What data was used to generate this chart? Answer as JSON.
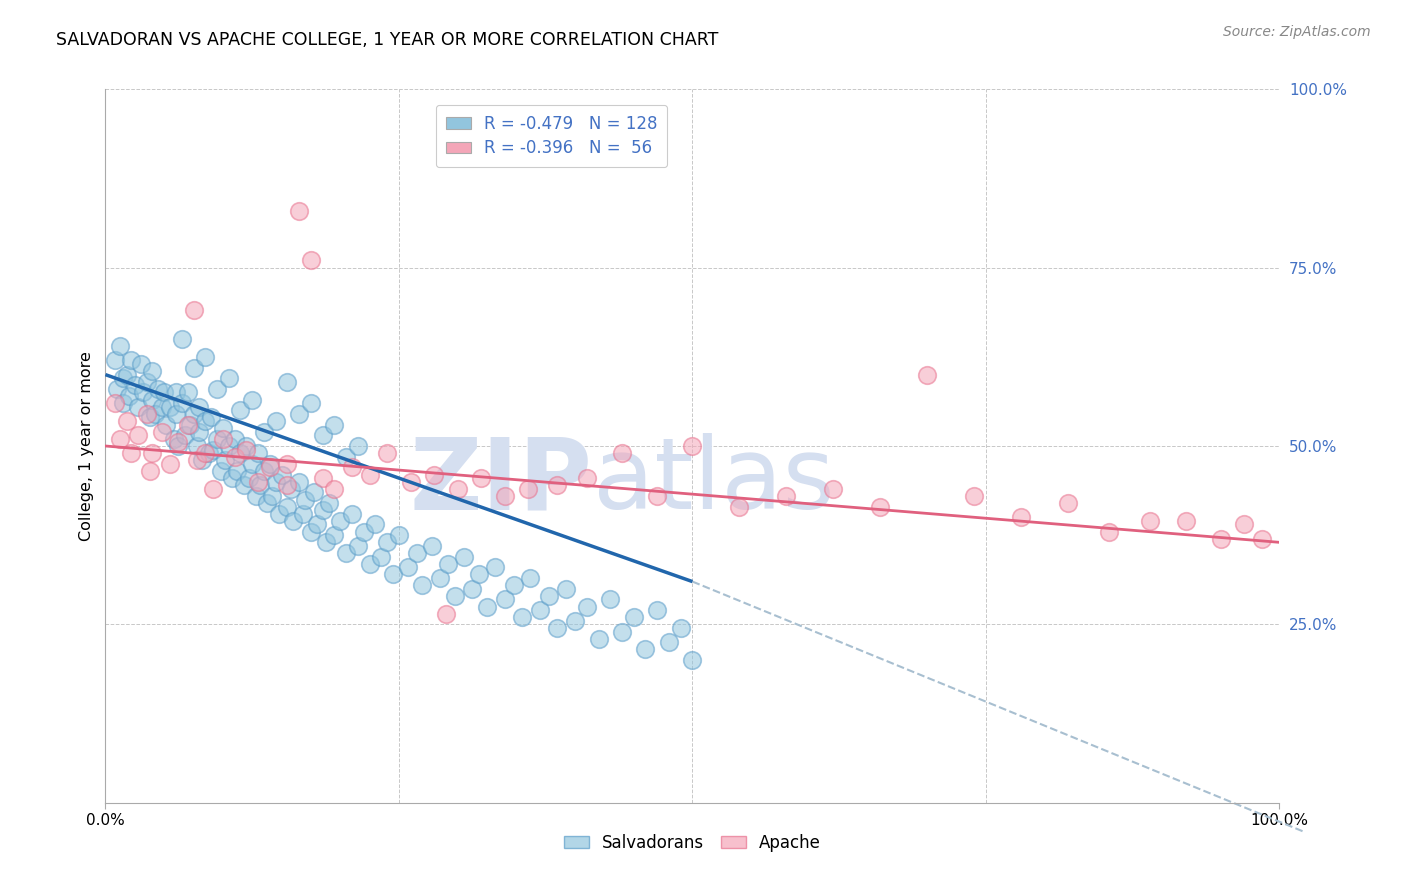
{
  "title": "SALVADORAN VS APACHE COLLEGE, 1 YEAR OR MORE CORRELATION CHART",
  "source": "Source: ZipAtlas.com",
  "ylabel": "College, 1 year or more",
  "xlim": [
    0.0,
    1.0
  ],
  "ylim": [
    0.0,
    1.0
  ],
  "ytick_right_values": [
    0.25,
    0.5,
    0.75,
    1.0
  ],
  "blue_color": "#92c5de",
  "pink_color": "#f4a6b8",
  "blue_edge_color": "#5b9dc9",
  "pink_edge_color": "#e8728e",
  "blue_line_color": "#2166ac",
  "pink_line_color": "#e0607e",
  "watermark": "ZIPatlas",
  "watermark_color": "#d5dff0",
  "grid_color": "#c8c8c8",
  "blue_line_x": [
    0.0,
    0.5
  ],
  "blue_line_y": [
    0.6,
    0.31
  ],
  "pink_line_x": [
    0.0,
    1.0
  ],
  "pink_line_y": [
    0.5,
    0.365
  ],
  "dashed_line_x": [
    0.5,
    1.02
  ],
  "dashed_line_y": [
    0.31,
    -0.04
  ],
  "dashed_color": "#a8bfd0",
  "blue_scatter_x": [
    0.008,
    0.01,
    0.012,
    0.015,
    0.015,
    0.018,
    0.02,
    0.022,
    0.025,
    0.028,
    0.03,
    0.032,
    0.035,
    0.038,
    0.04,
    0.04,
    0.042,
    0.045,
    0.048,
    0.05,
    0.052,
    0.055,
    0.058,
    0.06,
    0.06,
    0.062,
    0.065,
    0.068,
    0.07,
    0.072,
    0.075,
    0.078,
    0.08,
    0.08,
    0.082,
    0.085,
    0.088,
    0.09,
    0.092,
    0.095,
    0.098,
    0.1,
    0.102,
    0.105,
    0.108,
    0.11,
    0.112,
    0.115,
    0.118,
    0.12,
    0.122,
    0.125,
    0.128,
    0.13,
    0.132,
    0.135,
    0.138,
    0.14,
    0.142,
    0.145,
    0.148,
    0.15,
    0.155,
    0.158,
    0.16,
    0.165,
    0.168,
    0.17,
    0.175,
    0.178,
    0.18,
    0.185,
    0.188,
    0.19,
    0.195,
    0.2,
    0.205,
    0.21,
    0.215,
    0.22,
    0.225,
    0.23,
    0.235,
    0.24,
    0.245,
    0.25,
    0.258,
    0.265,
    0.27,
    0.278,
    0.285,
    0.292,
    0.298,
    0.305,
    0.312,
    0.318,
    0.325,
    0.332,
    0.34,
    0.348,
    0.355,
    0.362,
    0.37,
    0.378,
    0.385,
    0.392,
    0.4,
    0.41,
    0.42,
    0.43,
    0.44,
    0.45,
    0.46,
    0.47,
    0.48,
    0.49,
    0.5,
    0.065,
    0.075,
    0.085,
    0.095,
    0.105,
    0.115,
    0.125,
    0.135,
    0.145,
    0.155,
    0.165,
    0.175,
    0.185,
    0.195,
    0.205,
    0.215
  ],
  "blue_scatter_y": [
    0.62,
    0.58,
    0.64,
    0.595,
    0.56,
    0.6,
    0.57,
    0.62,
    0.585,
    0.555,
    0.615,
    0.575,
    0.59,
    0.54,
    0.605,
    0.565,
    0.545,
    0.58,
    0.555,
    0.575,
    0.53,
    0.555,
    0.51,
    0.545,
    0.575,
    0.5,
    0.56,
    0.515,
    0.575,
    0.53,
    0.545,
    0.5,
    0.555,
    0.52,
    0.48,
    0.535,
    0.49,
    0.54,
    0.495,
    0.51,
    0.465,
    0.525,
    0.48,
    0.5,
    0.455,
    0.51,
    0.465,
    0.49,
    0.445,
    0.5,
    0.455,
    0.475,
    0.43,
    0.49,
    0.445,
    0.465,
    0.42,
    0.475,
    0.43,
    0.45,
    0.405,
    0.46,
    0.415,
    0.44,
    0.395,
    0.45,
    0.405,
    0.425,
    0.38,
    0.435,
    0.39,
    0.41,
    0.365,
    0.42,
    0.375,
    0.395,
    0.35,
    0.405,
    0.36,
    0.38,
    0.335,
    0.39,
    0.345,
    0.365,
    0.32,
    0.375,
    0.33,
    0.35,
    0.305,
    0.36,
    0.315,
    0.335,
    0.29,
    0.345,
    0.3,
    0.32,
    0.275,
    0.33,
    0.285,
    0.305,
    0.26,
    0.315,
    0.27,
    0.29,
    0.245,
    0.3,
    0.255,
    0.275,
    0.23,
    0.285,
    0.24,
    0.26,
    0.215,
    0.27,
    0.225,
    0.245,
    0.2,
    0.65,
    0.61,
    0.625,
    0.58,
    0.595,
    0.55,
    0.565,
    0.52,
    0.535,
    0.59,
    0.545,
    0.56,
    0.515,
    0.53,
    0.485,
    0.5
  ],
  "pink_scatter_x": [
    0.008,
    0.012,
    0.018,
    0.022,
    0.028,
    0.035,
    0.04,
    0.048,
    0.055,
    0.062,
    0.07,
    0.078,
    0.085,
    0.092,
    0.1,
    0.11,
    0.12,
    0.13,
    0.14,
    0.155,
    0.165,
    0.175,
    0.185,
    0.195,
    0.21,
    0.225,
    0.24,
    0.26,
    0.28,
    0.3,
    0.32,
    0.34,
    0.36,
    0.385,
    0.41,
    0.44,
    0.47,
    0.5,
    0.54,
    0.58,
    0.62,
    0.66,
    0.7,
    0.74,
    0.78,
    0.82,
    0.855,
    0.89,
    0.92,
    0.95,
    0.97,
    0.985,
    0.075,
    0.038,
    0.155,
    0.29
  ],
  "pink_scatter_y": [
    0.56,
    0.51,
    0.535,
    0.49,
    0.515,
    0.545,
    0.49,
    0.52,
    0.475,
    0.505,
    0.53,
    0.48,
    0.49,
    0.44,
    0.51,
    0.485,
    0.495,
    0.45,
    0.47,
    0.475,
    0.83,
    0.76,
    0.455,
    0.44,
    0.47,
    0.46,
    0.49,
    0.45,
    0.46,
    0.44,
    0.455,
    0.43,
    0.44,
    0.445,
    0.455,
    0.49,
    0.43,
    0.5,
    0.415,
    0.43,
    0.44,
    0.415,
    0.6,
    0.43,
    0.4,
    0.42,
    0.38,
    0.395,
    0.395,
    0.37,
    0.39,
    0.37,
    0.69,
    0.465,
    0.445,
    0.265
  ]
}
